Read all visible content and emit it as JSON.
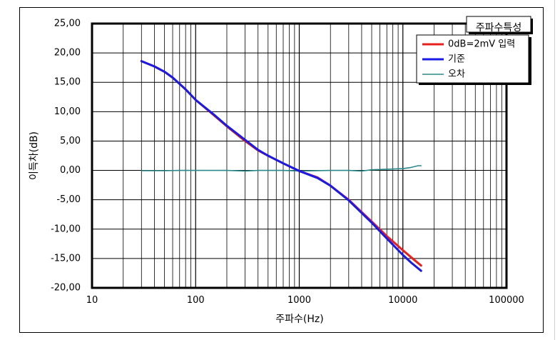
{
  "chart_data": {
    "type": "line",
    "title": "주파수특성",
    "xlabel": "주파수(Hz)",
    "ylabel": "이득차(dB)",
    "xscale": "log",
    "xlim": [
      10,
      100000
    ],
    "ylim": [
      -20,
      25
    ],
    "xticks": [
      10,
      100,
      1000,
      10000,
      100000
    ],
    "xtick_labels": [
      "10",
      "100",
      "1000",
      "10000",
      "100000"
    ],
    "yticks": [
      25,
      20,
      15,
      10,
      5,
      0,
      -5,
      -10,
      -15,
      -20
    ],
    "ytick_labels": [
      "25,00",
      "20,00",
      "15,00",
      "10,00",
      "5,00",
      "0,00",
      "-5,00",
      "-10,00",
      "-15,00",
      "-20,00"
    ],
    "grid": true,
    "legend_position": "top-right",
    "series": [
      {
        "name": "0dB=2mV 입력",
        "color": "#e8201c",
        "x": [
          30,
          40,
          50,
          60,
          80,
          100,
          150,
          200,
          300,
          400,
          500,
          700,
          1000,
          1500,
          2000,
          3000,
          5000,
          7000,
          10000,
          12000,
          15000
        ],
        "y": [
          18.6,
          17.7,
          16.8,
          15.8,
          13.8,
          12.0,
          9.4,
          7.5,
          5.0,
          3.4,
          2.5,
          1.2,
          -0.1,
          -1.2,
          -2.6,
          -5.0,
          -8.7,
          -11.2,
          -13.6,
          -14.8,
          -16.2
        ]
      },
      {
        "name": "기준",
        "color": "#1a1ae6",
        "x": [
          30,
          40,
          50,
          60,
          80,
          100,
          150,
          200,
          300,
          400,
          500,
          700,
          1000,
          1500,
          2000,
          3000,
          5000,
          7000,
          10000,
          12000,
          15000
        ],
        "y": [
          18.6,
          17.7,
          16.8,
          15.8,
          13.8,
          12.0,
          9.5,
          7.6,
          5.2,
          3.5,
          2.5,
          1.2,
          -0.1,
          -1.3,
          -2.6,
          -5.1,
          -8.9,
          -11.6,
          -14.4,
          -15.7,
          -17.1
        ]
      },
      {
        "name": "오차",
        "color": "#2a8a8a",
        "x": [
          30,
          50,
          70,
          100,
          200,
          300,
          400,
          700,
          1000,
          2000,
          3000,
          4000,
          5000,
          7000,
          10000,
          12000,
          14000,
          15000
        ],
        "y": [
          -0.05,
          -0.05,
          0.0,
          0.0,
          0.0,
          -0.1,
          0.0,
          0.0,
          -0.1,
          0.0,
          0.0,
          -0.1,
          0.1,
          0.2,
          0.3,
          0.5,
          0.8,
          0.8
        ]
      }
    ]
  }
}
